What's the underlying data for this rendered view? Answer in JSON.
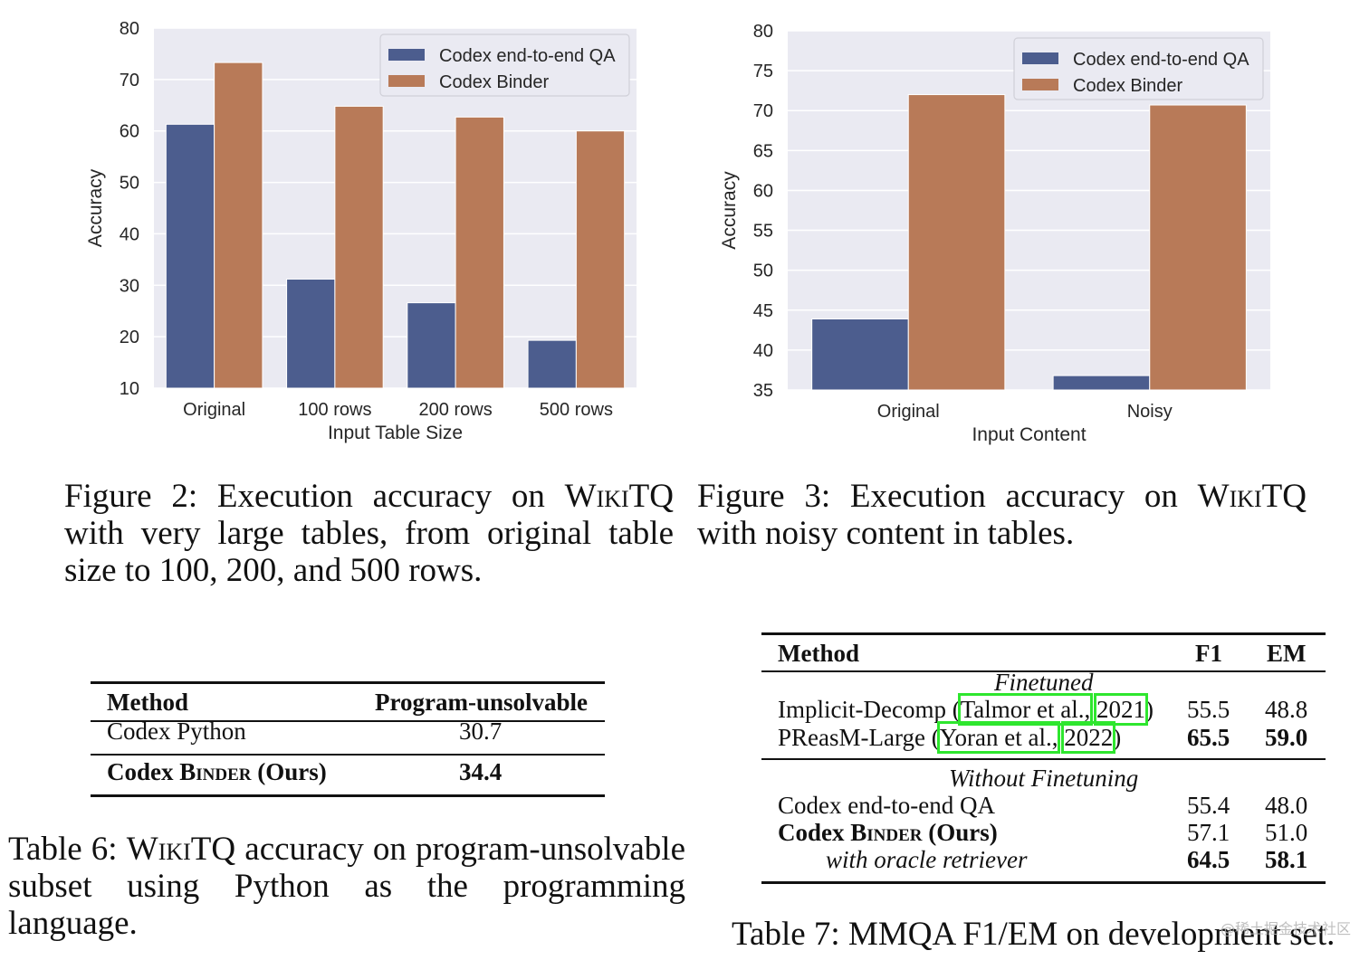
{
  "chart_data": [
    {
      "id": "fig2",
      "type": "bar",
      "categories": [
        "Original",
        "100 rows",
        "200 rows",
        "500 rows"
      ],
      "series": [
        {
          "name": "Codex end-to-end QA",
          "values": [
            61.3,
            31.2,
            26.6,
            19.3
          ],
          "color": "#4c5d8e"
        },
        {
          "name": "Codex Binder",
          "values": [
            73.3,
            64.8,
            62.7,
            60.0
          ],
          "color": "#b87a58"
        }
      ],
      "title": "",
      "xlabel": "Input Table Size",
      "ylabel": "Accuracy",
      "ylim": [
        10,
        80
      ],
      "yticks": [
        10,
        20,
        30,
        40,
        50,
        60,
        70,
        80
      ],
      "legend": "top-right",
      "grid": true
    },
    {
      "id": "fig3",
      "type": "bar",
      "categories": [
        "Original",
        "Noisy"
      ],
      "series": [
        {
          "name": "Codex end-to-end QA",
          "values": [
            43.9,
            36.8
          ],
          "color": "#4c5d8e"
        },
        {
          "name": "Codex Binder",
          "values": [
            72.0,
            70.7
          ],
          "color": "#b87a58"
        }
      ],
      "title": "",
      "xlabel": "Input Content",
      "ylabel": "Accuracy",
      "ylim": [
        35,
        80
      ],
      "yticks": [
        35,
        40,
        45,
        50,
        55,
        60,
        65,
        70,
        75,
        80
      ],
      "legend": "top-right",
      "grid": true
    }
  ],
  "captions": {
    "fig2": {
      "prefix": "Figure 2:  Execution accuracy on ",
      "sc": "WikiTQ",
      "rest": "with very large tables, from original table size to 100, 200, and 500 rows."
    },
    "fig3": {
      "prefix": "Figure 3:  Execution accuracy on ",
      "sc": "WikiTQ",
      "rest": "with noisy content in tables."
    },
    "table6": {
      "prefix": "Table 6: ",
      "sc": "WikiTQ",
      "rest": " accuracy on program-unsolvable subset using Python as the programming language."
    },
    "table7": {
      "text": "Table 7: MMQA F1/EM on development set."
    }
  },
  "table6": {
    "headers": [
      "Method",
      "Program-unsolvable"
    ],
    "rows": [
      {
        "method": "Codex Python",
        "value": "30.7"
      },
      {
        "method_prefix": "Codex B",
        "method_sc": "inder",
        "method_suffix": " (Ours)",
        "value": "34.4"
      }
    ]
  },
  "table7": {
    "headers": [
      "Method",
      "F1",
      "EM"
    ],
    "section1": "Finetuned",
    "row1": {
      "name": "Implicit-Decomp (",
      "cite_a": "Talmor et al.,",
      "cite_b": "2021",
      "close": ")",
      "f1": "55.5",
      "em": "48.8"
    },
    "row2": {
      "name": "PReasM-Large (",
      "cite_a": "Yoran et al.,",
      "cite_b": "2022",
      "close": ")",
      "f1": "65.5",
      "em": "59.0"
    },
    "section2": "Without Finetuning",
    "row3": {
      "name": "Codex end-to-end QA",
      "f1": "55.4",
      "em": "48.0"
    },
    "row4": {
      "name_prefix": "Codex B",
      "name_sc": "inder",
      "name_suffix": " (Ours)",
      "f1": "57.1",
      "em": "51.0"
    },
    "row5": {
      "name": "with oracle retriever",
      "f1": "64.5",
      "em": "58.1"
    }
  },
  "watermark": "@稀土掘金技术社区"
}
